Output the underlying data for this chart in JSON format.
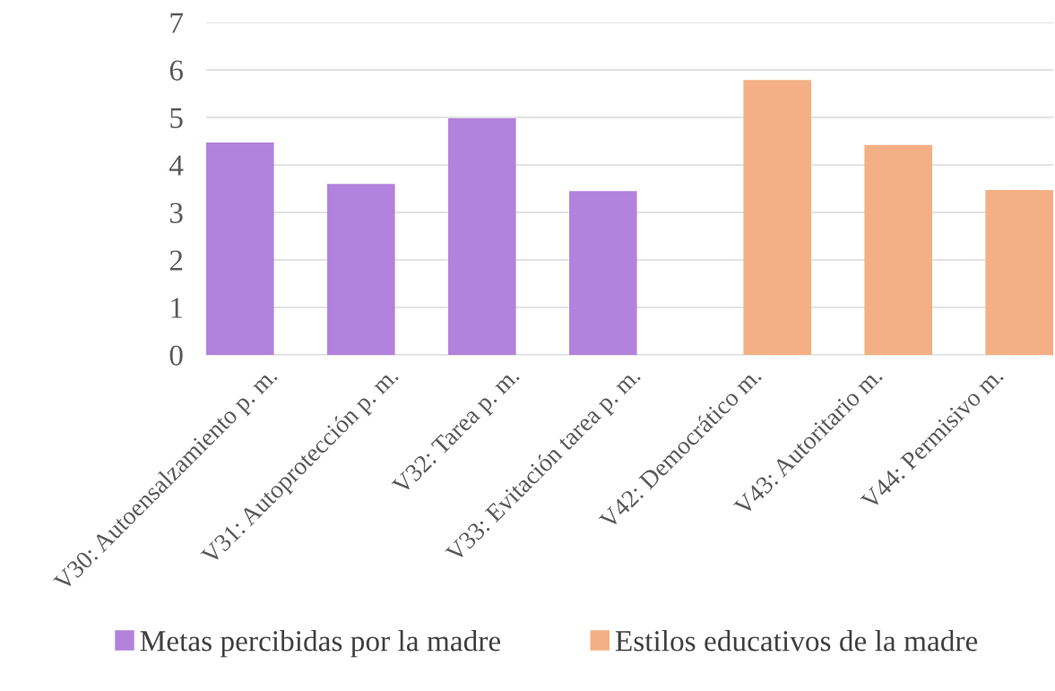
{
  "chart_data": {
    "type": "bar",
    "categories": [
      "V30: Autoensalzamiento p. m.",
      "V31: Autoprotección p. m.",
      "V32: Tarea p. m.",
      "V33: Evitación tarea p. m.",
      "V42: Democrático m.",
      "V43: Autoritario m.",
      "V44: Permisivo m."
    ],
    "series": [
      {
        "name": "Metas percibidas por la madre",
        "color": "#b282dc",
        "values": [
          4.47,
          3.6,
          4.98,
          3.45,
          null,
          null,
          null
        ]
      },
      {
        "name": "Estilos educativos de la madre",
        "color": "#f4b084",
        "values": [
          null,
          null,
          null,
          null,
          5.79,
          4.42,
          3.47
        ]
      }
    ],
    "ylim": [
      0,
      7
    ],
    "yticks": [
      0,
      1,
      2,
      3,
      4,
      5,
      6,
      7
    ],
    "grid": "y",
    "legend": "bottom"
  }
}
